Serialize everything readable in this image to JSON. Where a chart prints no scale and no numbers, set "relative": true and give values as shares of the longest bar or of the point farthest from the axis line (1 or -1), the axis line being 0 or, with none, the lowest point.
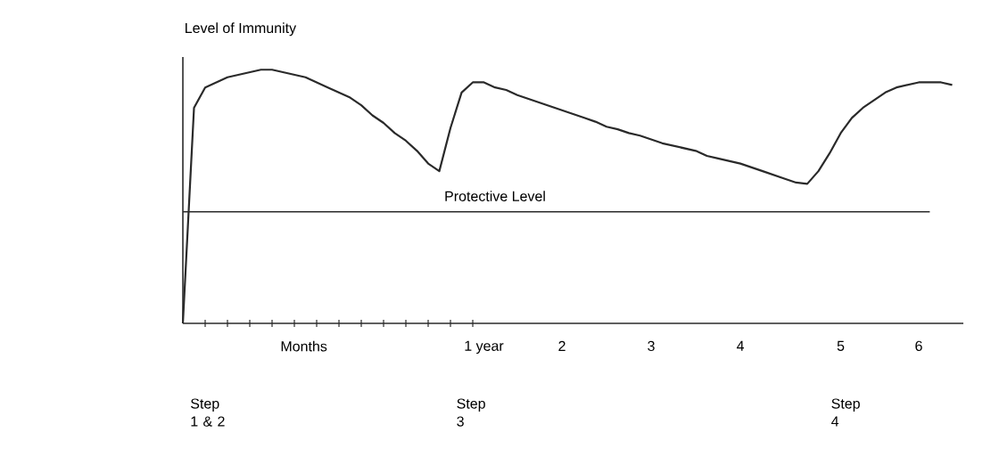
{
  "chart_data": {
    "type": "line",
    "relative": true,
    "ylabel": "Level of Immunity",
    "xlabel": "Months",
    "categories": [
      null,
      null,
      null,
      null,
      null,
      null,
      null,
      null,
      null,
      null,
      null,
      null,
      null,
      null,
      null,
      null,
      null,
      null,
      null,
      null,
      null,
      null,
      null,
      null,
      null,
      null,
      null,
      "1 year",
      null,
      null,
      null,
      null,
      null,
      null,
      "2",
      null,
      null,
      null,
      null,
      null,
      null,
      null,
      "3",
      null,
      null,
      null,
      null,
      null,
      null,
      null,
      "4",
      null,
      null,
      null,
      null,
      null,
      null,
      null,
      null,
      "5",
      null,
      null,
      null,
      null,
      null,
      null,
      "6",
      null,
      null,
      null,
      null
    ],
    "values": [
      0,
      0.85,
      0.93,
      0.95,
      0.97,
      0.98,
      0.99,
      1,
      1,
      0.99,
      0.98,
      0.97,
      0.95,
      0.93,
      0.91,
      0.89,
      0.86,
      0.82,
      0.79,
      0.75,
      0.72,
      0.68,
      0.63,
      0.6,
      0.77,
      0.91,
      0.95,
      0.95,
      0.93,
      0.92,
      0.9,
      0.885,
      0.87,
      0.855,
      0.84,
      0.825,
      0.81,
      0.795,
      0.775,
      0.765,
      0.75,
      0.74,
      0.725,
      0.71,
      0.7,
      0.69,
      0.68,
      0.66,
      0.65,
      0.64,
      0.63,
      0.615,
      0.6,
      0.585,
      0.57,
      0.555,
      0.55,
      0.6,
      0.67,
      0.75,
      0.81,
      0.85,
      0.88,
      0.91,
      0.93,
      0.94,
      0.95,
      0.95,
      0.95,
      0.94,
      null
    ],
    "color": "#2a2a2a",
    "marker": "none",
    "line_style": "solid",
    "ref_lines": [
      {
        "axis": "y",
        "value": 0.44,
        "label": "Protective Level",
        "color": "#2a2a2a"
      }
    ],
    "annotations": [
      "Step 1 & 2",
      "Step 3",
      "Step 4"
    ]
  }
}
